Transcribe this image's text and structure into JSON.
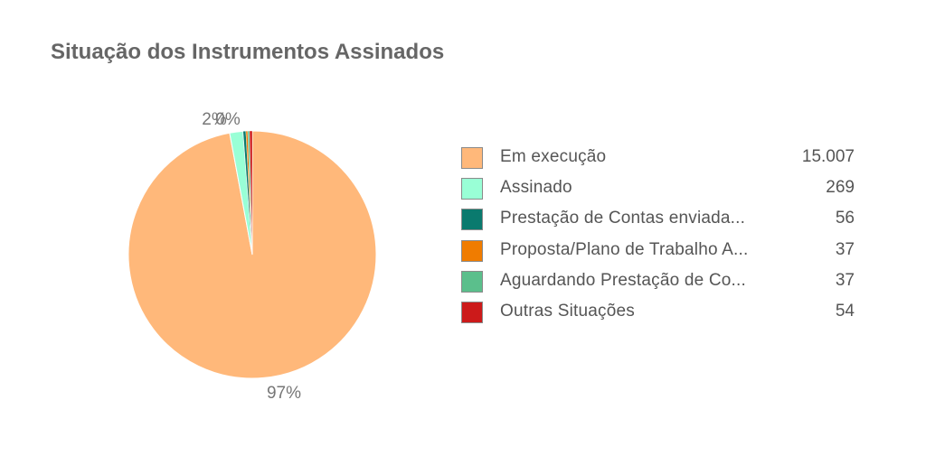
{
  "chart_data": {
    "type": "pie",
    "title": "Situação dos Instrumentos Assinados",
    "slices": [
      {
        "label": "Em execução",
        "value": 15007,
        "display_value": "15.007",
        "color": "#ffb87a"
      },
      {
        "label": "Assinado",
        "value": 269,
        "display_value": "269",
        "color": "#99ffd6"
      },
      {
        "label": "Prestação de Contas enviada...",
        "value": 56,
        "display_value": "56",
        "color": "#0a7a6e"
      },
      {
        "label": "Proposta/Plano de Trabalho A...",
        "value": 37,
        "display_value": "37",
        "color": "#f07c00"
      },
      {
        "label": "Aguardando Prestação de Co...",
        "value": 37,
        "display_value": "37",
        "color": "#5bbf8c"
      },
      {
        "label": "Outras Situações",
        "value": 54,
        "display_value": "54",
        "color": "#cc1a1a"
      }
    ],
    "slice_labels": [
      "97%",
      "2%",
      "0%"
    ],
    "legend_position": "right"
  }
}
